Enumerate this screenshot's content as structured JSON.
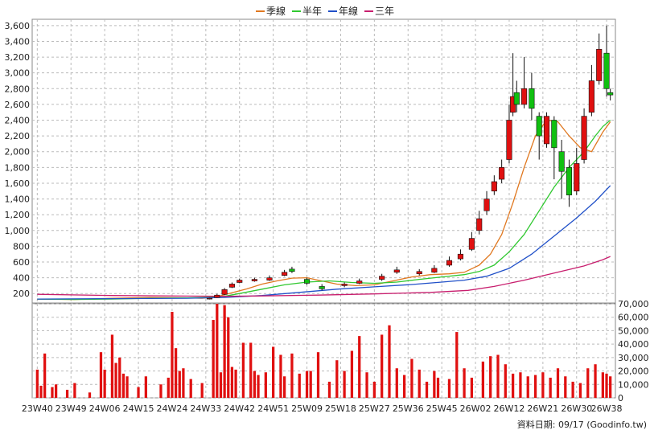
{
  "chart_data": {
    "type": "candlestick-with-volume",
    "legend": [
      {
        "label": "季線",
        "color": "#e07820"
      },
      {
        "label": "半年",
        "color": "#30c830"
      },
      {
        "label": "年線",
        "color": "#2050c8"
      },
      {
        "label": "三年",
        "color": "#c81e6e"
      }
    ],
    "price_axis": {
      "ticks": [
        200,
        400,
        600,
        800,
        1000,
        1200,
        1400,
        1600,
        1800,
        2000,
        2200,
        2400,
        2600,
        2800,
        3000,
        3200,
        3400,
        3600
      ],
      "tick_labels": [
        "200",
        "400",
        "600",
        "800",
        "1,000",
        "1,200",
        "1,400",
        "1,600",
        "1,800",
        "2,000",
        "2,200",
        "2,400",
        "2,600",
        "2,800",
        "3,000",
        "3,200",
        "3,400",
        "3,600"
      ],
      "ylim": [
        80,
        3680
      ]
    },
    "volume_axis": {
      "ticks": [
        0,
        10000,
        20000,
        30000,
        40000,
        50000,
        60000,
        70000
      ],
      "tick_labels": [
        "0",
        "10,000",
        "20,000",
        "30,000",
        "40,000",
        "50,000",
        "60,000",
        "70,000"
      ],
      "ylim": [
        0,
        70000
      ]
    },
    "x_ticks": [
      {
        "label": "23W40",
        "index": 0
      },
      {
        "label": "23W49",
        "index": 9
      },
      {
        "label": "24W06",
        "index": 18
      },
      {
        "label": "24W15",
        "index": 27
      },
      {
        "label": "24W24",
        "index": 36
      },
      {
        "label": "24W33",
        "index": 45
      },
      {
        "label": "24W42",
        "index": 54
      },
      {
        "label": "24W51",
        "index": 63
      },
      {
        "label": "25W09",
        "index": 72
      },
      {
        "label": "25W18",
        "index": 81
      },
      {
        "label": "25W27",
        "index": 90
      },
      {
        "label": "25W36",
        "index": 99
      },
      {
        "label": "25W45",
        "index": 108
      },
      {
        "label": "26W02",
        "index": 117
      },
      {
        "label": "26W12",
        "index": 126
      },
      {
        "label": "26W21",
        "index": 135
      },
      {
        "label": "26W30",
        "index": 144
      },
      {
        "label": "26W38",
        "index": 152
      }
    ],
    "price_series": [
      {
        "name": "季線",
        "color": "#e07820",
        "points": [
          [
            0,
            130
          ],
          [
            10,
            125
          ],
          [
            20,
            140
          ],
          [
            30,
            150
          ],
          [
            40,
            145
          ],
          [
            44,
            140
          ],
          [
            48,
            160
          ],
          [
            52,
            210
          ],
          [
            56,
            260
          ],
          [
            60,
            320
          ],
          [
            64,
            360
          ],
          [
            68,
            395
          ],
          [
            72,
            400
          ],
          [
            75,
            370
          ],
          [
            80,
            320
          ],
          [
            85,
            300
          ],
          [
            90,
            310
          ],
          [
            95,
            360
          ],
          [
            100,
            410
          ],
          [
            105,
            440
          ],
          [
            110,
            450
          ],
          [
            114,
            470
          ],
          [
            118,
            560
          ],
          [
            121,
            700
          ],
          [
            124,
            950
          ],
          [
            127,
            1350
          ],
          [
            130,
            1800
          ],
          [
            133,
            2200
          ],
          [
            136,
            2400
          ],
          [
            139,
            2380
          ],
          [
            142,
            2200
          ],
          [
            145,
            2050
          ],
          [
            148,
            2000
          ],
          [
            151,
            2250
          ],
          [
            153,
            2380
          ]
        ]
      },
      {
        "name": "半年",
        "color": "#30c830",
        "points": [
          [
            0,
            130
          ],
          [
            10,
            125
          ],
          [
            20,
            130
          ],
          [
            30,
            140
          ],
          [
            40,
            145
          ],
          [
            45,
            150
          ],
          [
            50,
            165
          ],
          [
            55,
            210
          ],
          [
            60,
            255
          ],
          [
            66,
            310
          ],
          [
            72,
            345
          ],
          [
            78,
            360
          ],
          [
            84,
            340
          ],
          [
            90,
            330
          ],
          [
            96,
            345
          ],
          [
            102,
            380
          ],
          [
            108,
            410
          ],
          [
            114,
            440
          ],
          [
            118,
            480
          ],
          [
            122,
            560
          ],
          [
            126,
            730
          ],
          [
            130,
            950
          ],
          [
            134,
            1250
          ],
          [
            138,
            1550
          ],
          [
            142,
            1800
          ],
          [
            146,
            2000
          ],
          [
            149,
            2200
          ],
          [
            151,
            2320
          ],
          [
            153,
            2400
          ]
        ]
      },
      {
        "name": "年線",
        "color": "#2050c8",
        "points": [
          [
            0,
            130
          ],
          [
            20,
            135
          ],
          [
            40,
            140
          ],
          [
            50,
            150
          ],
          [
            60,
            175
          ],
          [
            70,
            215
          ],
          [
            80,
            255
          ],
          [
            90,
            285
          ],
          [
            100,
            315
          ],
          [
            108,
            345
          ],
          [
            114,
            370
          ],
          [
            120,
            420
          ],
          [
            126,
            520
          ],
          [
            132,
            700
          ],
          [
            138,
            930
          ],
          [
            144,
            1160
          ],
          [
            149,
            1370
          ],
          [
            153,
            1570
          ]
        ]
      },
      {
        "name": "三年",
        "color": "#c81e6e",
        "points": [
          [
            0,
            190
          ],
          [
            20,
            175
          ],
          [
            40,
            168
          ],
          [
            50,
            165
          ],
          [
            60,
            170
          ],
          [
            75,
            180
          ],
          [
            90,
            195
          ],
          [
            105,
            215
          ],
          [
            115,
            240
          ],
          [
            122,
            290
          ],
          [
            130,
            370
          ],
          [
            138,
            460
          ],
          [
            146,
            550
          ],
          [
            151,
            630
          ],
          [
            153,
            670
          ]
        ]
      }
    ],
    "volume_bars": [
      {
        "index": 0,
        "value": 21000
      },
      {
        "index": 1,
        "value": 9000
      },
      {
        "index": 2,
        "value": 33000
      },
      {
        "index": 4,
        "value": 8000
      },
      {
        "index": 5,
        "value": 10000
      },
      {
        "index": 8,
        "value": 6000
      },
      {
        "index": 10,
        "value": 11000
      },
      {
        "index": 14,
        "value": 4000
      },
      {
        "index": 17,
        "value": 34000
      },
      {
        "index": 18,
        "value": 21000
      },
      {
        "index": 20,
        "value": 47000
      },
      {
        "index": 21,
        "value": 26000
      },
      {
        "index": 22,
        "value": 30000
      },
      {
        "index": 23,
        "value": 18000
      },
      {
        "index": 24,
        "value": 16000
      },
      {
        "index": 27,
        "value": 8000
      },
      {
        "index": 29,
        "value": 16000
      },
      {
        "index": 33,
        "value": 10000
      },
      {
        "index": 35,
        "value": 15000
      },
      {
        "index": 36,
        "value": 64000
      },
      {
        "index": 37,
        "value": 37000
      },
      {
        "index": 38,
        "value": 20000
      },
      {
        "index": 39,
        "value": 22000
      },
      {
        "index": 41,
        "value": 14000
      },
      {
        "index": 44,
        "value": 11000
      },
      {
        "index": 47,
        "value": 58000
      },
      {
        "index": 48,
        "value": 70000
      },
      {
        "index": 49,
        "value": 19000
      },
      {
        "index": 50,
        "value": 69000
      },
      {
        "index": 51,
        "value": 60000
      },
      {
        "index": 52,
        "value": 23000
      },
      {
        "index": 53,
        "value": 21000
      },
      {
        "index": 55,
        "value": 41000
      },
      {
        "index": 57,
        "value": 41000
      },
      {
        "index": 58,
        "value": 20000
      },
      {
        "index": 59,
        "value": 17000
      },
      {
        "index": 61,
        "value": 19000
      },
      {
        "index": 63,
        "value": 38000
      },
      {
        "index": 65,
        "value": 32000
      },
      {
        "index": 66,
        "value": 16000
      },
      {
        "index": 68,
        "value": 33000
      },
      {
        "index": 70,
        "value": 18000
      },
      {
        "index": 72,
        "value": 20000
      },
      {
        "index": 73,
        "value": 20000
      },
      {
        "index": 75,
        "value": 34000
      },
      {
        "index": 78,
        "value": 12000
      },
      {
        "index": 80,
        "value": 28000
      },
      {
        "index": 82,
        "value": 20000
      },
      {
        "index": 84,
        "value": 35000
      },
      {
        "index": 86,
        "value": 46000
      },
      {
        "index": 88,
        "value": 19000
      },
      {
        "index": 90,
        "value": 12000
      },
      {
        "index": 92,
        "value": 47000
      },
      {
        "index": 94,
        "value": 54000
      },
      {
        "index": 96,
        "value": 22000
      },
      {
        "index": 98,
        "value": 17000
      },
      {
        "index": 100,
        "value": 29000
      },
      {
        "index": 102,
        "value": 21000
      },
      {
        "index": 104,
        "value": 12000
      },
      {
        "index": 106,
        "value": 20000
      },
      {
        "index": 107,
        "value": 15000
      },
      {
        "index": 110,
        "value": 14000
      },
      {
        "index": 112,
        "value": 49000
      },
      {
        "index": 114,
        "value": 22000
      },
      {
        "index": 116,
        "value": 15000
      },
      {
        "index": 119,
        "value": 27000
      },
      {
        "index": 121,
        "value": 31000
      },
      {
        "index": 123,
        "value": 32000
      },
      {
        "index": 125,
        "value": 25000
      },
      {
        "index": 127,
        "value": 18000
      },
      {
        "index": 129,
        "value": 19000
      },
      {
        "index": 131,
        "value": 16000
      },
      {
        "index": 133,
        "value": 17000
      },
      {
        "index": 135,
        "value": 19000
      },
      {
        "index": 137,
        "value": 15000
      },
      {
        "index": 139,
        "value": 22000
      },
      {
        "index": 141,
        "value": 16000
      },
      {
        "index": 143,
        "value": 12000
      },
      {
        "index": 145,
        "value": 11000
      },
      {
        "index": 147,
        "value": 22000
      },
      {
        "index": 149,
        "value": 25000
      },
      {
        "index": 151,
        "value": 19000
      },
      {
        "index": 152,
        "value": 18000
      },
      {
        "index": 153,
        "value": 16000
      }
    ],
    "candles": [
      {
        "index": 46,
        "open": 130,
        "close": 140,
        "high": 145,
        "low": 125
      },
      {
        "index": 48,
        "open": 150,
        "close": 180,
        "high": 195,
        "low": 145
      },
      {
        "index": 50,
        "open": 190,
        "close": 250,
        "high": 270,
        "low": 180
      },
      {
        "index": 52,
        "open": 280,
        "close": 320,
        "high": 340,
        "low": 270
      },
      {
        "index": 54,
        "open": 340,
        "close": 370,
        "high": 390,
        "low": 330
      },
      {
        "index": 58,
        "open": 360,
        "close": 380,
        "high": 400,
        "low": 350
      },
      {
        "index": 62,
        "open": 370,
        "close": 400,
        "high": 430,
        "low": 360
      },
      {
        "index": 66,
        "open": 430,
        "close": 470,
        "high": 500,
        "low": 420
      },
      {
        "index": 68,
        "open": 510,
        "close": 480,
        "high": 540,
        "low": 460
      },
      {
        "index": 72,
        "open": 380,
        "close": 330,
        "high": 400,
        "low": 310
      },
      {
        "index": 76,
        "open": 290,
        "close": 260,
        "high": 320,
        "low": 240
      },
      {
        "index": 82,
        "open": 300,
        "close": 320,
        "high": 340,
        "low": 280
      },
      {
        "index": 86,
        "open": 330,
        "close": 360,
        "high": 390,
        "low": 320
      },
      {
        "index": 92,
        "open": 380,
        "close": 420,
        "high": 450,
        "low": 360
      },
      {
        "index": 96,
        "open": 470,
        "close": 500,
        "high": 540,
        "low": 450
      },
      {
        "index": 102,
        "open": 450,
        "close": 480,
        "high": 510,
        "low": 430
      },
      {
        "index": 106,
        "open": 470,
        "close": 520,
        "high": 560,
        "low": 460
      },
      {
        "index": 110,
        "open": 560,
        "close": 620,
        "high": 670,
        "low": 540
      },
      {
        "index": 113,
        "open": 640,
        "close": 700,
        "high": 760,
        "low": 620
      },
      {
        "index": 116,
        "open": 760,
        "close": 900,
        "high": 980,
        "low": 740
      },
      {
        "index": 118,
        "open": 1000,
        "close": 1150,
        "high": 1250,
        "low": 950
      },
      {
        "index": 120,
        "open": 1250,
        "close": 1400,
        "high": 1500,
        "low": 1200
      },
      {
        "index": 122,
        "open": 1500,
        "close": 1620,
        "high": 1700,
        "low": 1450
      },
      {
        "index": 124,
        "open": 1650,
        "close": 1800,
        "high": 1900,
        "low": 1600
      },
      {
        "index": 126,
        "open": 1900,
        "close": 2400,
        "high": 2600,
        "low": 1850
      },
      {
        "index": 127,
        "open": 2500,
        "close": 2700,
        "high": 3250,
        "low": 2450
      },
      {
        "index": 128,
        "open": 2750,
        "close": 2600,
        "high": 2900,
        "low": 2500
      },
      {
        "index": 130,
        "open": 2600,
        "close": 2800,
        "high": 3200,
        "low": 2550
      },
      {
        "index": 132,
        "open": 2800,
        "close": 2550,
        "high": 3000,
        "low": 2400
      },
      {
        "index": 134,
        "open": 2450,
        "close": 2200,
        "high": 2500,
        "low": 1900
      },
      {
        "index": 136,
        "open": 2100,
        "close": 2450,
        "high": 2500,
        "low": 2050
      },
      {
        "index": 138,
        "open": 2400,
        "close": 2050,
        "high": 2450,
        "low": 1650
      },
      {
        "index": 140,
        "open": 2000,
        "close": 1750,
        "high": 2150,
        "low": 1400
      },
      {
        "index": 142,
        "open": 1800,
        "close": 1450,
        "high": 1900,
        "low": 1300
      },
      {
        "index": 144,
        "open": 1500,
        "close": 1850,
        "high": 2050,
        "low": 1450
      },
      {
        "index": 146,
        "open": 1900,
        "close": 2450,
        "high": 2550,
        "low": 1850
      },
      {
        "index": 148,
        "open": 2500,
        "close": 2900,
        "high": 3100,
        "low": 2450
      },
      {
        "index": 150,
        "open": 2900,
        "close": 3300,
        "high": 3500,
        "low": 2850
      },
      {
        "index": 152,
        "open": 3250,
        "close": 2800,
        "high": 3600,
        "low": 2700
      },
      {
        "index": 153,
        "open": 2750,
        "close": 2720,
        "high": 2800,
        "low": 2650
      }
    ],
    "n_periods": 154,
    "grid": true
  },
  "credit": "資料日期: 09/17  (Goodinfo.tw)"
}
